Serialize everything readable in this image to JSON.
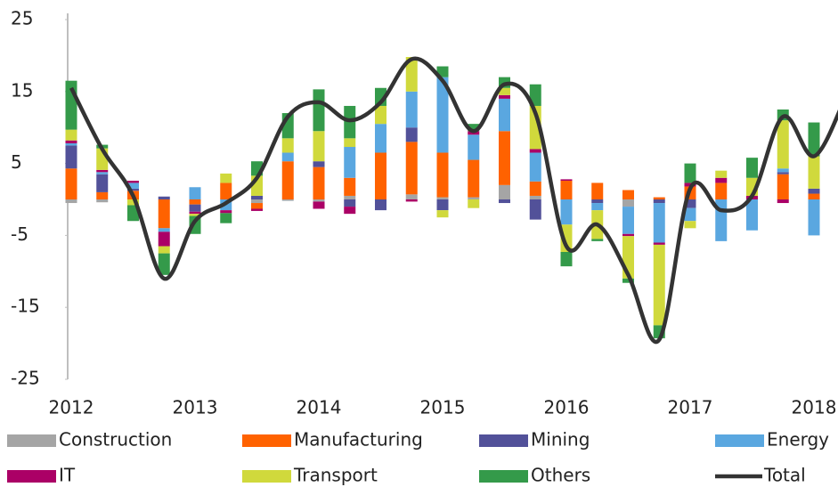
{
  "chart_data": {
    "type": "bar",
    "stacked": true,
    "categories": [
      "2012",
      null,
      null,
      null,
      "2013",
      null,
      null,
      null,
      "2014",
      null,
      null,
      null,
      "2015",
      null,
      null,
      null,
      "2016",
      null,
      null,
      null,
      "2017",
      null,
      null,
      null,
      "2018",
      null
    ],
    "ylim": [
      -25,
      25
    ],
    "yticks": [
      -25,
      -15,
      -5,
      5,
      15,
      25
    ],
    "grid": false,
    "series": [
      {
        "name": "Construction",
        "color": "#a5a5a5",
        "values": [
          -0.5,
          -0.4,
          0,
          0,
          0,
          0,
          -0.5,
          -0.2,
          -0.3,
          0.5,
          0,
          0.7,
          0.3,
          0.3,
          2.0,
          0.5,
          0,
          0,
          -1.0,
          0,
          0,
          0,
          0,
          0,
          0,
          null
        ]
      },
      {
        "name": "Manufacturing",
        "color": "#ff6200",
        "values": [
          4.3,
          1.0,
          1.2,
          -4.0,
          -0.7,
          2.3,
          -0.8,
          5.3,
          4.5,
          2.5,
          6.5,
          7.3,
          6.2,
          5.2,
          7.5,
          2.0,
          2.6,
          2.3,
          1.3,
          0.3,
          1.8,
          2.3,
          0,
          3.5,
          0.8,
          null
        ]
      },
      {
        "name": "Mining",
        "color": "#525199",
        "values": [
          3.2,
          2.5,
          0.3,
          0.4,
          -1.0,
          0,
          0.5,
          0,
          0.8,
          -1.0,
          -1.5,
          2.0,
          -1.5,
          0,
          -0.5,
          -2.8,
          0,
          -0.5,
          0,
          -0.5,
          -1.2,
          0,
          0,
          0.3,
          0.7,
          null
        ]
      },
      {
        "name": "Energy",
        "color": "#5aa7e0",
        "values": [
          0.3,
          0.3,
          0.8,
          -0.5,
          1.7,
          -1.5,
          0,
          1.2,
          0,
          4.3,
          4.0,
          5.0,
          10.5,
          3.5,
          4.5,
          4.0,
          -3.5,
          -1.0,
          -3.8,
          -5.5,
          -1.8,
          -5.8,
          -4.3,
          0.5,
          -5.0,
          null
        ]
      },
      {
        "name": "IT",
        "color": "#ab0066",
        "values": [
          0.4,
          0.3,
          0.3,
          -2.0,
          -0.3,
          -0.4,
          -0.3,
          0,
          -1.0,
          -1.0,
          0,
          -0.3,
          0,
          0.5,
          0.5,
          0.5,
          0.2,
          0,
          -0.3,
          -0.3,
          0.5,
          0.7,
          0.5,
          -0.5,
          0,
          null
        ]
      },
      {
        "name": "Transport",
        "color": "#d0d93c",
        "values": [
          1.5,
          3.0,
          -0.8,
          -1.0,
          -0.3,
          1.3,
          2.8,
          2.0,
          4.2,
          1.2,
          2.5,
          4.8,
          -1.0,
          -1.2,
          1.0,
          6.0,
          -3.8,
          -4.0,
          -5.9,
          -11.2,
          -1.0,
          1.0,
          2.5,
          6.7,
          4.5,
          null
        ]
      },
      {
        "name": "Others",
        "color": "#349a4a",
        "values": [
          6.8,
          0.5,
          -2.2,
          -3.0,
          -2.5,
          -1.4,
          2.0,
          3.5,
          5.8,
          4.5,
          2.5,
          0,
          1.5,
          1.0,
          1.5,
          3.0,
          -2.0,
          -0.3,
          -0.6,
          -1.8,
          2.7,
          0,
          2.8,
          1.5,
          4.7,
          null
        ]
      },
      {
        "name": "Total",
        "color": "#333333",
        "type": "line",
        "values": [
          15.5,
          7.0,
          0.5,
          -11.0,
          -3.0,
          -0.5,
          3.0,
          11.5,
          13.5,
          11.0,
          13.5,
          19.5,
          16.5,
          9.5,
          16.0,
          12.0,
          -6.5,
          -3.5,
          -10.5,
          -19.5,
          1.5,
          -1.5,
          0.5,
          11.5,
          6.0,
          14.0
        ]
      }
    ]
  }
}
